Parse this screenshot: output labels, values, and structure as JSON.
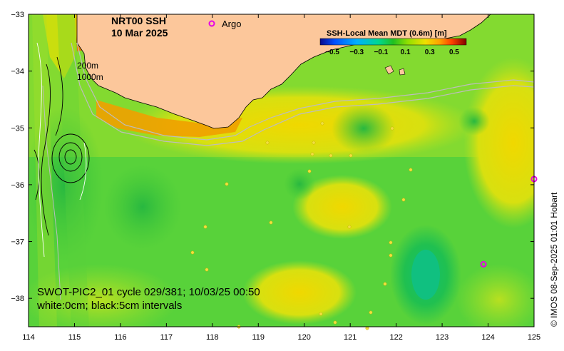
{
  "title": {
    "line1": "NRT00 SSH",
    "line2": "10 Mar 2025"
  },
  "legend": {
    "argo_label": "Argo",
    "argo_color": "#e600e6"
  },
  "colorbar": {
    "title": "SSH-Local Mean MDT (0.6m) [m]",
    "ticks": [
      "−0.5",
      "−0.3",
      "−0.1",
      "0.1",
      "0.3",
      "0.5"
    ],
    "colors": [
      "#0a0a8c",
      "#0050ff",
      "#00b0ff",
      "#00d890",
      "#20c020",
      "#90e000",
      "#f0e000",
      "#ffa000",
      "#ff4000",
      "#c00000",
      "#800000"
    ]
  },
  "isobaths": {
    "shallow": "200m",
    "deep": "1000m"
  },
  "swot": {
    "line1": "SWOT-PIC2_01 cycle 029/381; 10/03/25 00:50",
    "line2": "white:0cm; black:5cm intervals"
  },
  "credit": "© IMOS 08-Sep-2025 01:01 Hobart",
  "axes": {
    "x_ticks": [
      "114",
      "115",
      "116",
      "117",
      "118",
      "119",
      "120",
      "121",
      "122",
      "123",
      "124",
      "125"
    ],
    "y_ticks": [
      "−33",
      "−34",
      "−35",
      "−36",
      "−37",
      "−38"
    ],
    "xlim": [
      114,
      125
    ],
    "ylim": [
      -38.5,
      -33
    ]
  },
  "colors": {
    "land": "#fcc79b",
    "base_green": "#58d23a",
    "dark_green": "#2cb848",
    "yellow_green": "#a8e028",
    "yellow": "#e8e000",
    "orange": "#f0a000",
    "teal": "#10c070"
  },
  "argo_floats": [
    {
      "lon": 125.0,
      "lat": -35.9
    },
    {
      "lon": 123.9,
      "lat": -37.4
    }
  ]
}
